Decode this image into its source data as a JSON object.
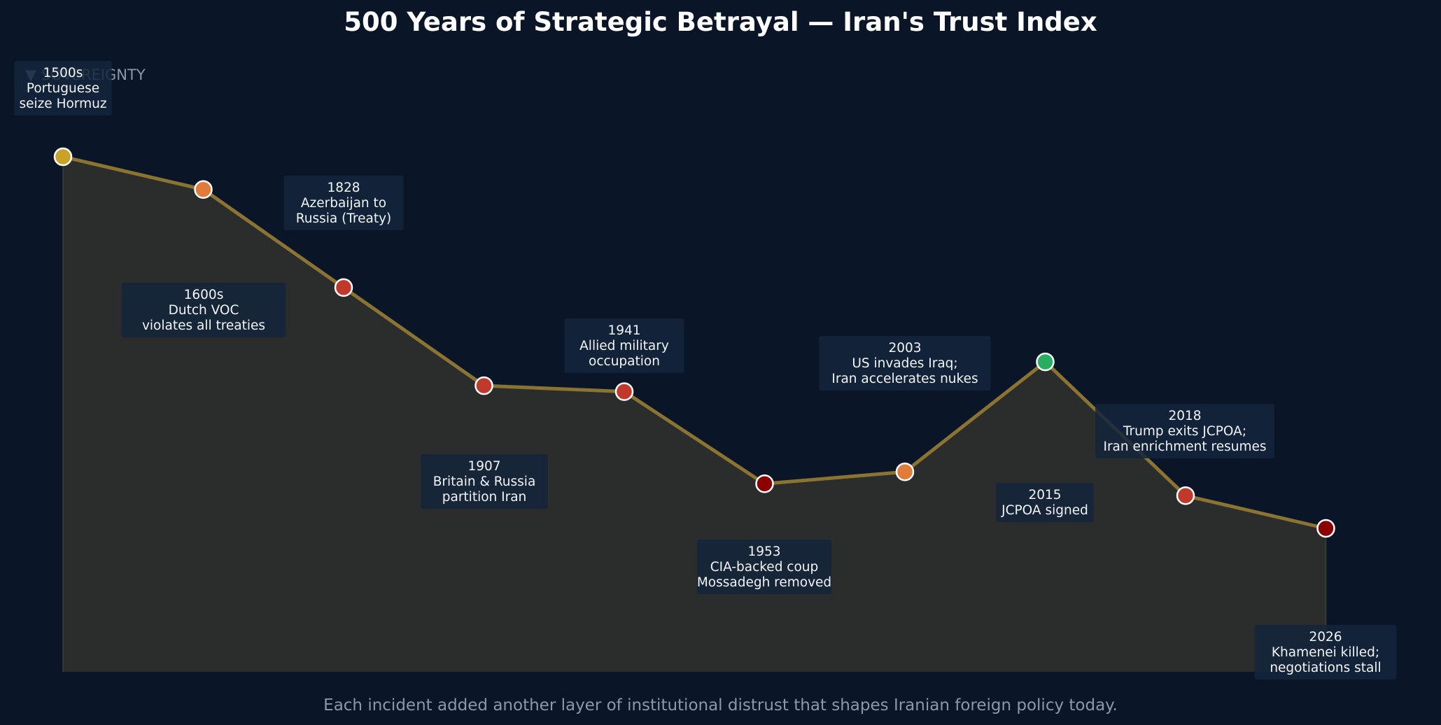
{
  "chart_data": {
    "type": "line",
    "title": "500 Years of Strategic Betrayal — Iran's Trust Index",
    "caption": "Each incident added another layer of institutional distrust that shapes Iranian foreign policy today.",
    "ylabel_note": "▼ SOVEREIGNTY",
    "ylim": [
      0,
      100
    ],
    "grid": false,
    "legend": "none",
    "line_color": "#8b7332",
    "fill_color": "#2a2d2b",
    "points": [
      {
        "x": "1500s",
        "y": 90,
        "color": "#c9a227",
        "label": [
          "1500s",
          "Portuguese",
          "seize Hormuz"
        ],
        "label_pos": "above"
      },
      {
        "x": "1600s",
        "y": 84.5,
        "color": "#e07b39",
        "label": [
          "1600s",
          "Dutch VOC",
          "violates all treaties"
        ],
        "label_pos": "below"
      },
      {
        "x": "1828",
        "y": 68,
        "color": "#c0392b",
        "label": [
          "1828",
          "Azerbaijan to",
          "Russia (Treaty)"
        ],
        "label_pos": "above"
      },
      {
        "x": "1907",
        "y": 51.5,
        "color": "#c0392b",
        "label": [
          "1907",
          "Britain & Russia",
          "partition Iran"
        ],
        "label_pos": "below"
      },
      {
        "x": "1941",
        "y": 50.5,
        "color": "#c0392b",
        "label": [
          "1941",
          "Allied military",
          "occupation"
        ],
        "label_pos": "above"
      },
      {
        "x": "1953",
        "y": 35,
        "color": "#8b0000",
        "label": [
          "1953",
          "CIA-backed coup",
          "Mossadegh removed"
        ],
        "label_pos": "below"
      },
      {
        "x": "2003",
        "y": 37,
        "color": "#e07b39",
        "label": [
          "2003",
          "US invades Iraq;",
          "Iran accelerates nukes"
        ],
        "label_pos": "above"
      },
      {
        "x": "2015",
        "y": 55.5,
        "color": "#27ae60",
        "label": [
          "2015",
          "JCPOA signed"
        ],
        "label_pos": "below"
      },
      {
        "x": "2018",
        "y": 33,
        "color": "#c0392b",
        "label": [
          "2018",
          "Trump exits JCPOA;",
          "Iran enrichment resumes"
        ],
        "label_pos": "above"
      },
      {
        "x": "2026",
        "y": 27.5,
        "color": "#8b0000",
        "label": [
          "2026",
          "Khamenei killed;",
          "negotiations stall"
        ],
        "label_pos": "below"
      }
    ]
  }
}
